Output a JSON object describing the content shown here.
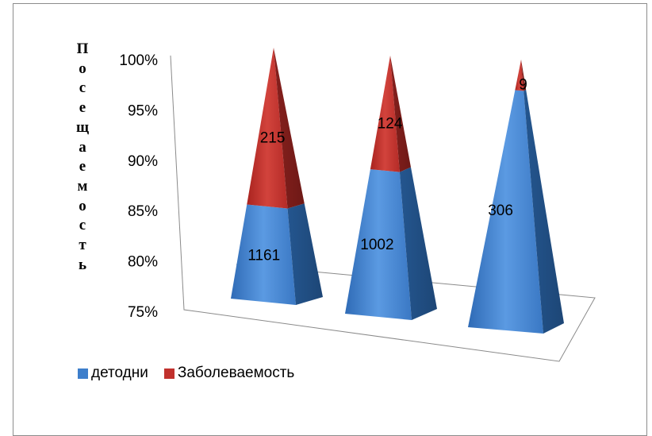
{
  "chart_data": {
    "type": "bar",
    "style": "3d-pyramid-stacked-100",
    "ylabel": "Посещаемость",
    "yticks": [
      "100%",
      "95%",
      "90%",
      "85%",
      "80%",
      "75%"
    ],
    "ylim": [
      0.75,
      1.0
    ],
    "categories": [
      "",
      "",
      ""
    ],
    "series": [
      {
        "name": "детодни",
        "color": "#3d7ecb",
        "values": [
          1161,
          1002,
          306
        ]
      },
      {
        "name": "Заболеваемость",
        "color": "#c1312d",
        "values": [
          215,
          124,
          9
        ]
      }
    ],
    "legend_position": "bottom-left"
  }
}
